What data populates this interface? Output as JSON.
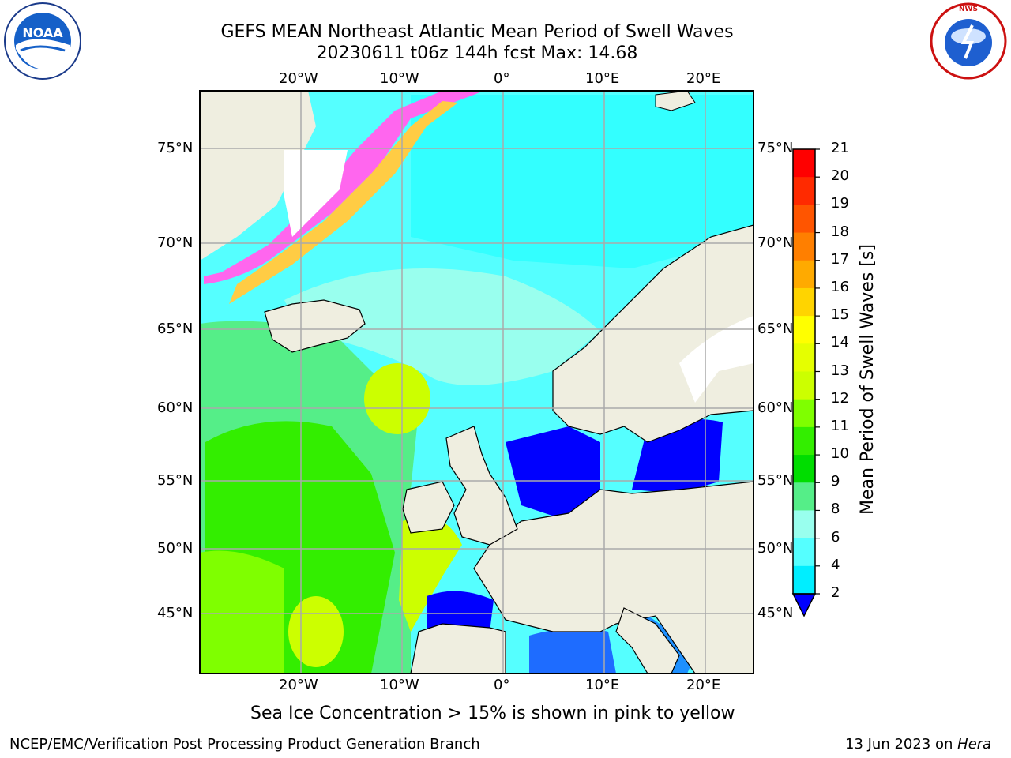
{
  "header": {
    "title_line1": "GEFS MEAN Northeast Atlantic Mean Period of Swell Waves",
    "title_line2": "20230611 t06z 144h fcst   Max: 14.68"
  },
  "logos": {
    "left": "NOAA",
    "right_text": "NATIONAL WEATHER SERVICE"
  },
  "map": {
    "lon_labels": [
      "20°W",
      "10°W",
      "0°",
      "10°E",
      "20°E"
    ],
    "lat_labels": [
      "75°N",
      "70°N",
      "65°N",
      "60°N",
      "55°N",
      "50°N",
      "45°N"
    ],
    "colors": {
      "land": "#efeee0",
      "ice_white": "#ffffff",
      "grid": "#aaaaaa"
    }
  },
  "colorbar": {
    "label": "Mean Period of Swell Waves [s]",
    "ticks": [
      "21",
      "20",
      "19",
      "18",
      "17",
      "16",
      "15",
      "14",
      "13",
      "12",
      "11",
      "10",
      "9",
      "8",
      "6",
      "4",
      "2"
    ],
    "colors": [
      "#ff0000",
      "#ff2a00",
      "#ff5500",
      "#ff7f00",
      "#ffaa00",
      "#ffd400",
      "#ffff00",
      "#e5ff00",
      "#ccff00",
      "#7fff00",
      "#33ee00",
      "#00dd00",
      "#55ee88",
      "#99ffee",
      "#55ffff",
      "#00eeff",
      "#0077ff",
      "#0000ff"
    ]
  },
  "note": "Sea Ice Concentration > 15% is shown in pink to yellow",
  "footer": {
    "left": "NCEP/EMC/Verification Post Processing Product Generation Branch",
    "right_prefix": "13 Jun 2023 on ",
    "right_machine": "Hera"
  }
}
